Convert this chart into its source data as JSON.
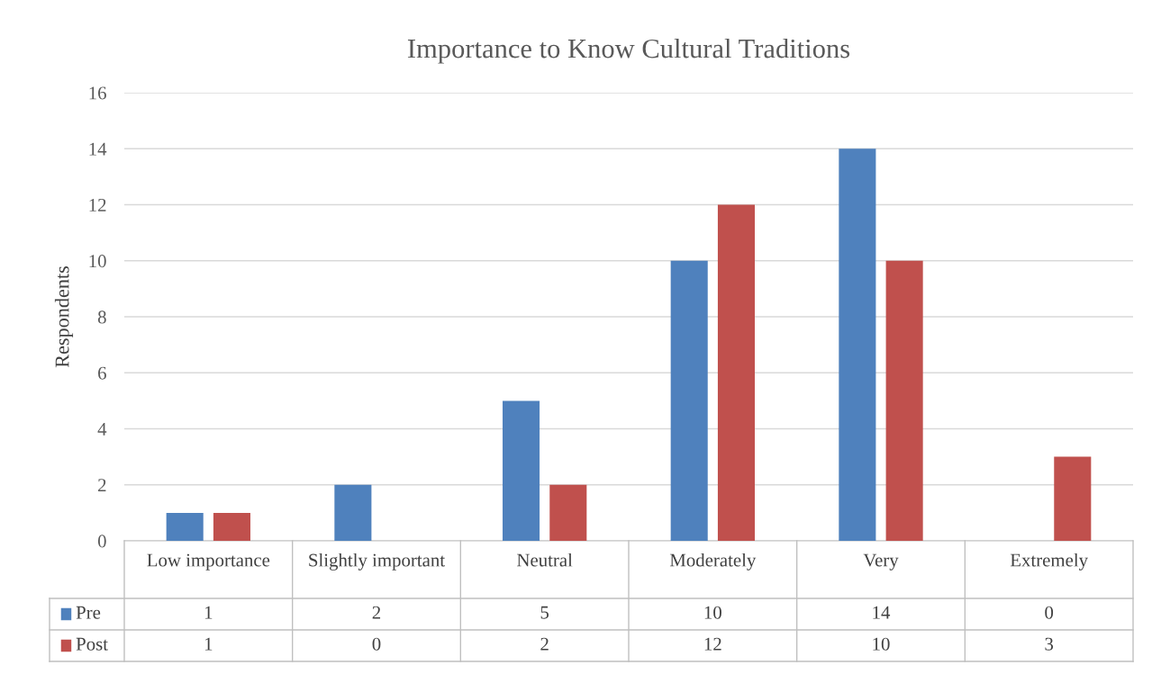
{
  "chart_data": {
    "type": "bar",
    "title": "Importance to Know Cultural Traditions",
    "ylabel": "Respondents",
    "categories": [
      "Low importance",
      "Slightly important",
      "Neutral",
      "Moderately",
      "Very",
      "Extremely"
    ],
    "series": [
      {
        "name": "Pre",
        "color": "#4f81bd",
        "values": [
          1,
          2,
          5,
          10,
          14,
          0
        ]
      },
      {
        "name": "Post",
        "color": "#c0504d",
        "values": [
          1,
          0,
          2,
          12,
          10,
          3
        ]
      }
    ],
    "ylim": [
      0,
      16
    ],
    "yticks": [
      0,
      2,
      4,
      6,
      8,
      10,
      12,
      14,
      16
    ],
    "grid": "y",
    "data_labels": true,
    "legend": "bottom"
  }
}
